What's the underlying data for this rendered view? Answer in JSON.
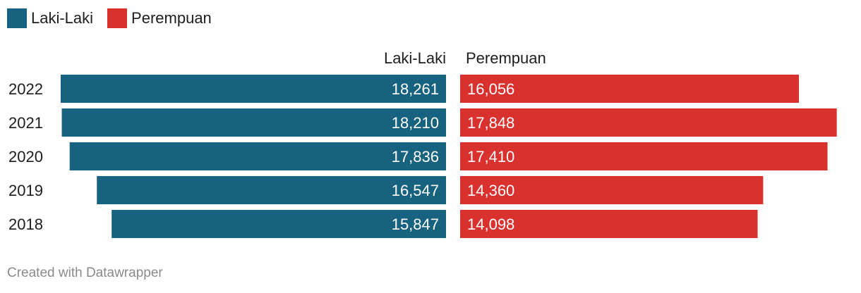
{
  "legend": [
    {
      "label": "Laki-Laki",
      "color": "#17627f"
    },
    {
      "label": "Perempuan",
      "color": "#d9322e"
    }
  ],
  "credit": "Created with Datawrapper",
  "chart_data": {
    "type": "bar",
    "orientation": "horizontal-butterfly",
    "title": "",
    "categories": [
      "2022",
      "2021",
      "2020",
      "2019",
      "2018"
    ],
    "series": [
      {
        "name": "Laki-Laki",
        "color": "#17627f",
        "values": [
          18261,
          18210,
          17836,
          16547,
          15847
        ],
        "labels": [
          "18,261",
          "18,210",
          "17,836",
          "16,547",
          "15,847"
        ]
      },
      {
        "name": "Perempuan",
        "color": "#d9322e",
        "values": [
          16056,
          17848,
          17410,
          14360,
          14098
        ],
        "labels": [
          "16,056",
          "17,848",
          "17,410",
          "14,360",
          "14,098"
        ]
      }
    ],
    "column_headers": [
      "Laki-Laki",
      "Perempuan"
    ],
    "legend_position": "top-left",
    "grid": false
  }
}
